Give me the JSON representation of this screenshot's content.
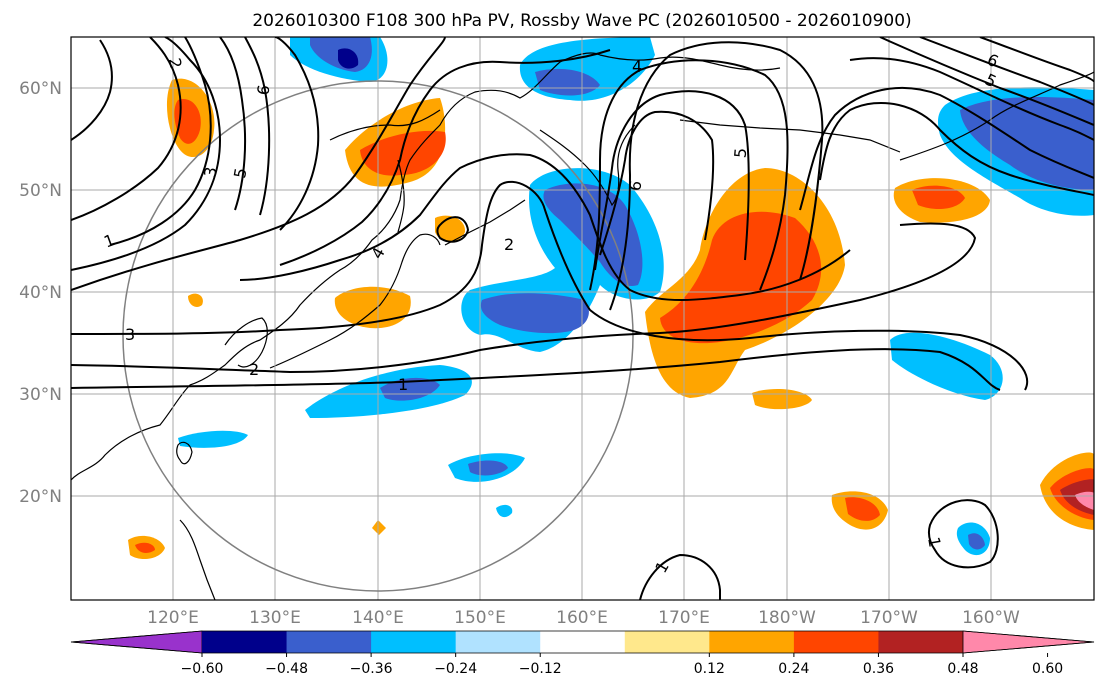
{
  "title": "2026010300 F108 300 hPa PV, Rossby Wave PC (2026010500 - 2026010900)",
  "lat_labels": [
    "60°N",
    "50°N",
    "40°N",
    "30°N",
    "20°N"
  ],
  "lon_labels": [
    "120°E",
    "130°E",
    "140°E",
    "150°E",
    "160°E",
    "170°E",
    "180°W",
    "170°W",
    "160°W"
  ],
  "colorbar": {
    "ticks": [
      "−0.60",
      "−0.48",
      "−0.36",
      "−0.24",
      "−0.12",
      "0.12",
      "0.24",
      "0.36",
      "0.48",
      "0.60"
    ],
    "colors": [
      "#9932cc",
      "#00008b",
      "#3a5fcd",
      "#00bfff",
      "#b0e2ff",
      "#ffffff",
      "#ffe88c",
      "#ffa500",
      "#ff4500",
      "#b22222",
      "#ff88aa"
    ]
  },
  "pv_contour_labels": [
    "2",
    "6",
    "5",
    "3",
    "1",
    "3",
    "2",
    "1",
    "4",
    "2",
    "4",
    "6",
    "5",
    "6",
    "5",
    "1",
    "1"
  ],
  "colors": {
    "grid": "#aaaaaa",
    "contour": "#000000",
    "circle": "#808080"
  }
}
